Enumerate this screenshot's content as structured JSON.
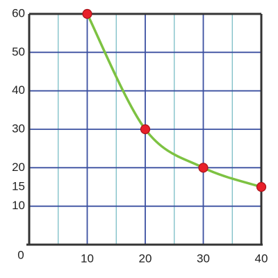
{
  "chart_data": {
    "type": "line",
    "x": [
      10,
      20,
      30,
      40
    ],
    "series": [
      {
        "color": "#7dc242",
        "values": [
          60,
          30,
          20,
          15
        ]
      }
    ],
    "marker_color": "#e8202a",
    "xlim": [
      0,
      40
    ],
    "xticks": [
      0,
      10,
      20,
      30,
      40
    ],
    "xminor": [
      5,
      15,
      25,
      35
    ],
    "ylim": [
      0,
      60
    ],
    "yticks": [
      10,
      15,
      20,
      30,
      40,
      50,
      60
    ],
    "ygrid": [
      10,
      20,
      30,
      40,
      50,
      60
    ],
    "grid_color": "#3a4fa0",
    "minor_grid_color": "#6fb7c0",
    "smooth": true
  }
}
